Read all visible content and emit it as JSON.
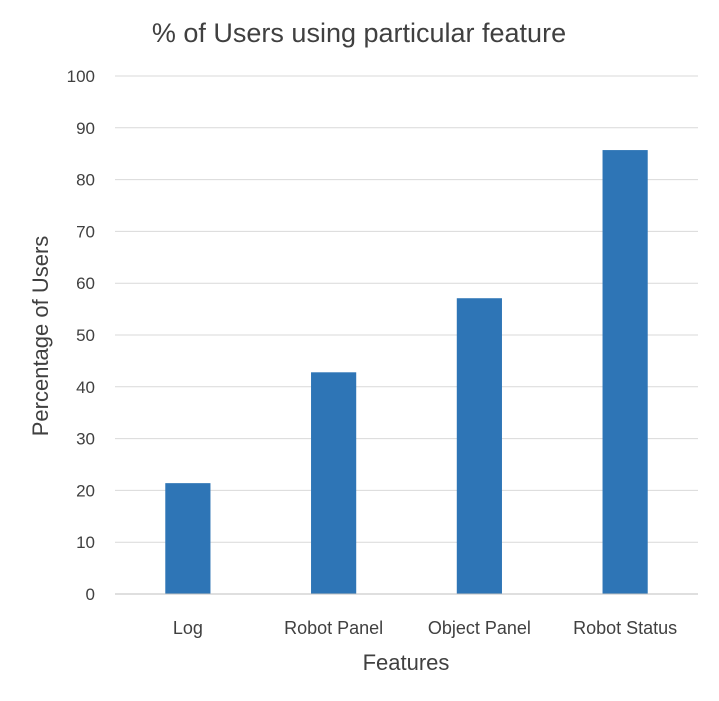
{
  "chart_data": {
    "type": "bar",
    "title": "% of Users using particular feature",
    "xlabel": "Features",
    "ylabel": "Percentage of Users",
    "categories": [
      "Log",
      "Robot Panel",
      "Object Panel",
      "Robot Status"
    ],
    "values": [
      21.4,
      42.8,
      57.1,
      85.7
    ],
    "ylim": [
      0,
      100
    ],
    "yticks": [
      0,
      10,
      20,
      30,
      40,
      50,
      60,
      70,
      80,
      90,
      100
    ],
    "grid": true,
    "legend": "none",
    "bar_color": "#2e75b6"
  }
}
